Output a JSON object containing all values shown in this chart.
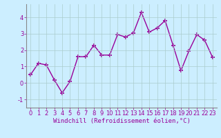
{
  "xlabel": "Windchill (Refroidissement éolien,°C)",
  "x": [
    0,
    1,
    2,
    3,
    4,
    5,
    6,
    7,
    8,
    9,
    10,
    11,
    12,
    13,
    14,
    15,
    16,
    17,
    18,
    19,
    20,
    21,
    22,
    23
  ],
  "y": [
    0.5,
    1.2,
    1.1,
    0.2,
    -0.6,
    0.1,
    1.6,
    1.6,
    2.3,
    1.7,
    1.7,
    2.95,
    2.8,
    3.05,
    4.3,
    3.1,
    3.35,
    3.8,
    2.3,
    0.75,
    1.95,
    2.95,
    2.6,
    1.55
  ],
  "line_color": "#990099",
  "marker": "+",
  "marker_size": 5,
  "marker_linewidth": 1.2,
  "bg_color": "#cceeff",
  "grid_color": "#aacccc",
  "ylim": [
    -1.5,
    4.8
  ],
  "xlim": [
    -0.5,
    23.5
  ],
  "yticks": [
    -1,
    0,
    1,
    2,
    3,
    4
  ],
  "xticks": [
    0,
    1,
    2,
    3,
    4,
    5,
    6,
    7,
    8,
    9,
    10,
    11,
    12,
    13,
    14,
    15,
    16,
    17,
    18,
    19,
    20,
    21,
    22,
    23
  ],
  "tick_color": "#990099",
  "xlabel_fontsize": 6.5,
  "tick_fontsize": 6.0,
  "linewidth": 1.0
}
